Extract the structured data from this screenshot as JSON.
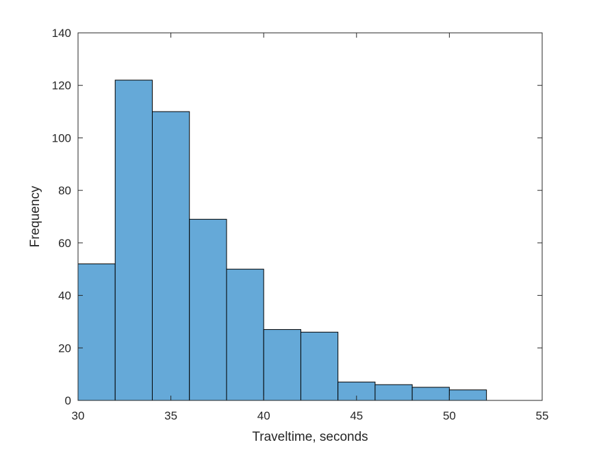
{
  "chart_data": {
    "type": "bar",
    "subtype": "histogram",
    "title": "",
    "xlabel": "Traveltime, seconds",
    "ylabel": "Frequency",
    "bin_edges": [
      30,
      32,
      34,
      36,
      38,
      40,
      42,
      44,
      46,
      48,
      50,
      52
    ],
    "values": [
      52,
      122,
      110,
      69,
      50,
      27,
      26,
      7,
      6,
      5,
      4
    ],
    "xlim": [
      30,
      55
    ],
    "ylim": [
      0,
      140
    ],
    "xticks": [
      30,
      35,
      40,
      45,
      50,
      55
    ],
    "yticks": [
      0,
      20,
      40,
      60,
      80,
      100,
      120,
      140
    ],
    "grid": false,
    "legend": "none",
    "bar_color": "#65A9D8",
    "edge_color": "#000000"
  }
}
